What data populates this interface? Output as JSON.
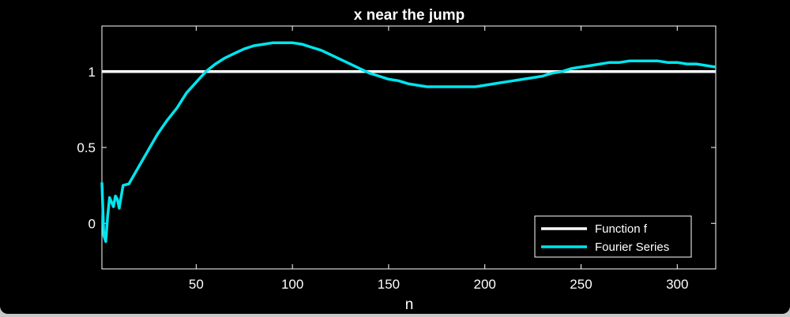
{
  "chart_data": {
    "type": "line",
    "title": "x near the jump",
    "xlabel": "n",
    "ylabel": "",
    "xlim": [
      1,
      320
    ],
    "ylim": [
      -0.3,
      1.3
    ],
    "x_ticks": [
      50,
      100,
      150,
      200,
      250,
      300
    ],
    "y_ticks": [
      0,
      0.5,
      1
    ],
    "y_tick_labels": [
      "0",
      "0.5",
      "1"
    ],
    "grid": false,
    "legend_position": "bottom-right",
    "background": "#000000",
    "series": [
      {
        "name": "Function f",
        "color": "#ffffff",
        "x": [
          1,
          320
        ],
        "y": [
          1,
          1
        ]
      },
      {
        "name": "Fourier Series",
        "color": "#00e5ee",
        "x": [
          1,
          2,
          3,
          4,
          5,
          7,
          8,
          9,
          10,
          12,
          15,
          20,
          25,
          30,
          35,
          40,
          45,
          50,
          55,
          60,
          65,
          70,
          75,
          80,
          85,
          90,
          95,
          100,
          105,
          110,
          115,
          120,
          125,
          130,
          135,
          140,
          145,
          150,
          155,
          160,
          165,
          170,
          175,
          180,
          185,
          190,
          195,
          200,
          205,
          210,
          215,
          220,
          225,
          230,
          235,
          240,
          245,
          250,
          255,
          260,
          265,
          270,
          275,
          280,
          285,
          290,
          295,
          300,
          305,
          310,
          315,
          320
        ],
        "y": [
          0.27,
          -0.08,
          -0.12,
          0.05,
          0.17,
          0.11,
          0.18,
          0.16,
          0.1,
          0.25,
          0.26,
          0.37,
          0.48,
          0.59,
          0.68,
          0.76,
          0.86,
          0.93,
          1.0,
          1.05,
          1.09,
          1.12,
          1.15,
          1.17,
          1.18,
          1.19,
          1.19,
          1.19,
          1.18,
          1.16,
          1.14,
          1.11,
          1.08,
          1.05,
          1.02,
          0.99,
          0.97,
          0.95,
          0.94,
          0.92,
          0.91,
          0.9,
          0.9,
          0.9,
          0.9,
          0.9,
          0.9,
          0.91,
          0.92,
          0.93,
          0.94,
          0.95,
          0.96,
          0.97,
          0.99,
          1.0,
          1.02,
          1.03,
          1.04,
          1.05,
          1.06,
          1.06,
          1.07,
          1.07,
          1.07,
          1.07,
          1.06,
          1.06,
          1.05,
          1.05,
          1.04,
          1.03
        ]
      }
    ]
  }
}
